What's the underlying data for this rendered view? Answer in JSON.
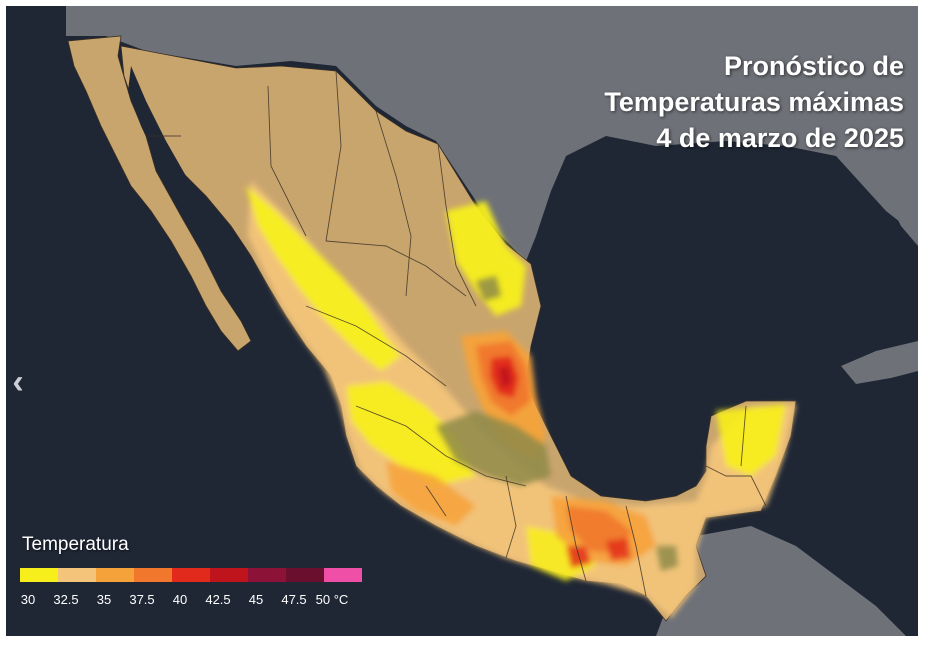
{
  "title": {
    "line1": "Pronóstico de",
    "line2": "Temperaturas máximas",
    "line3": "4 de marzo de 2025"
  },
  "legend": {
    "title": "Temperatura",
    "unit": "°C",
    "ticks": [
      "30",
      "32.5",
      "35",
      "37.5",
      "40",
      "42.5",
      "45",
      "47.5",
      "50 °C"
    ],
    "bins": [
      {
        "range": "30–32.5",
        "color": "#f7ef1b"
      },
      {
        "range": "32.5–35",
        "color": "#f3c47a"
      },
      {
        "range": "35–37.5",
        "color": "#f6a23a"
      },
      {
        "range": "37.5–40",
        "color": "#f1772c"
      },
      {
        "range": "40–42.5",
        "color": "#e22a1c"
      },
      {
        "range": "42.5–45",
        "color": "#c0141c"
      },
      {
        "range": "45–47.5",
        "color": "#8c1237"
      },
      {
        "range": "47.5–50",
        "color": "#6a0f2e"
      },
      {
        "range": "50+",
        "color": "#ef4fa6"
      }
    ]
  },
  "nav": {
    "prev_arrow": "‹"
  },
  "colors": {
    "ocean": "#1f2735",
    "terrain": "#c9a56e",
    "land_gray": "#6e7178",
    "state_borders": "#3a2f25"
  }
}
